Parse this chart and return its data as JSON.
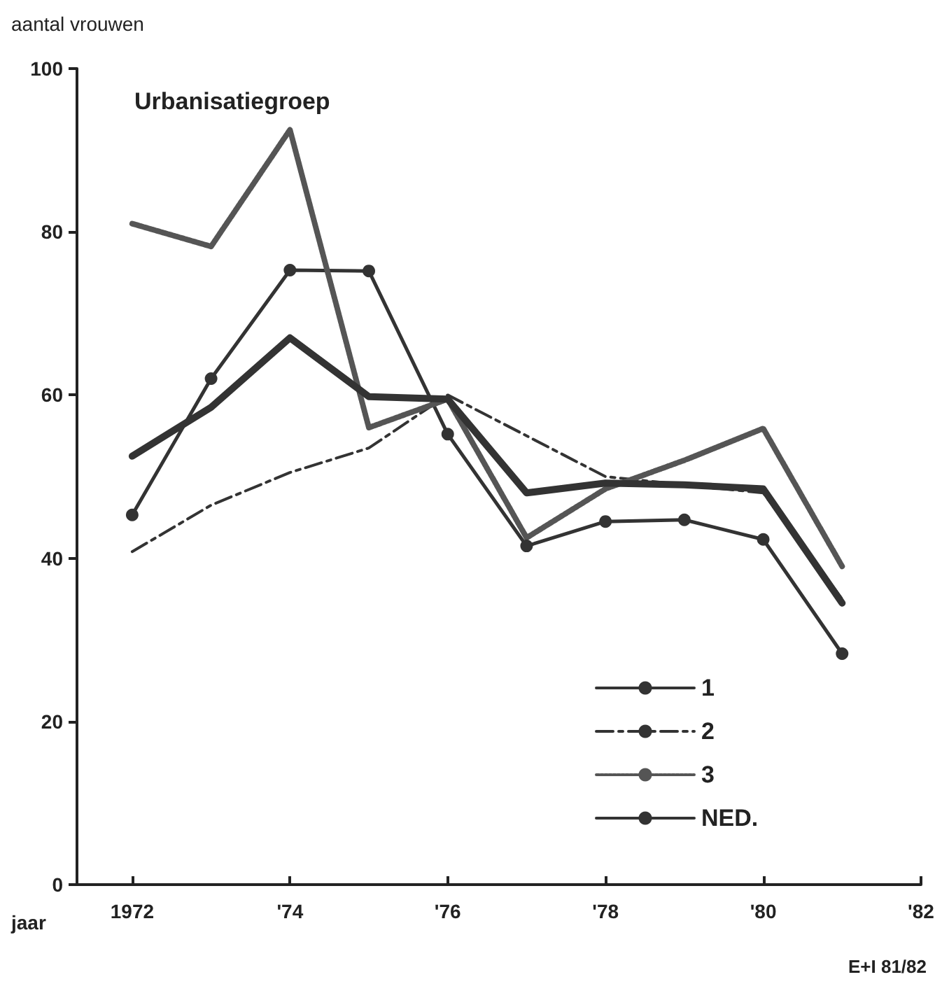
{
  "chart_data": {
    "type": "line",
    "ylabel": "aantal vrouwen",
    "xlabel": "jaar",
    "legend_title": "Urbanisatiegroep",
    "annotations": [
      "E+I 81/82"
    ],
    "x": [
      1972,
      1973,
      1974,
      1975,
      1976,
      1977,
      1978,
      1979,
      1980,
      1981
    ],
    "series": [
      {
        "name": "1",
        "color": "#333333",
        "marker": "circle",
        "line_style": "solid",
        "values": [
          45.3,
          62,
          75.3,
          75.2,
          55.2,
          41.5,
          44.5,
          44.7,
          42.3,
          28.3
        ]
      },
      {
        "name": "2",
        "color": "#333333",
        "marker": "none",
        "line_style": "dashed",
        "values": [
          40.8,
          46.5,
          50.5,
          53.5,
          60,
          55,
          50,
          49,
          48,
          35
        ]
      },
      {
        "name": "3",
        "color": "#555555",
        "marker": "none",
        "line_style": "dotted",
        "values": [
          81,
          78.2,
          92.5,
          56,
          59.5,
          42.5,
          48.5,
          52,
          55.9,
          39
        ]
      },
      {
        "name": "NED.",
        "color": "#333333",
        "marker": "none",
        "line_style": "solid",
        "values": [
          52.5,
          58.5,
          67,
          59.8,
          59.5,
          48,
          49.2,
          49,
          48.5,
          34.5
        ]
      }
    ],
    "xlim": [
      1971.3,
      1982
    ],
    "xticks": [
      {
        "value": 1972,
        "label": "1972"
      },
      {
        "value": 1974,
        "label": "'74"
      },
      {
        "value": 1976,
        "label": "'76"
      },
      {
        "value": 1978,
        "label": "'78"
      },
      {
        "value": 1980,
        "label": "'80"
      },
      {
        "value": 1982,
        "label": "'82"
      }
    ],
    "ylim": [
      0,
      100
    ],
    "yticks": [
      0,
      20,
      40,
      60,
      80,
      100
    ],
    "grid": false,
    "legend": "bottom right"
  }
}
